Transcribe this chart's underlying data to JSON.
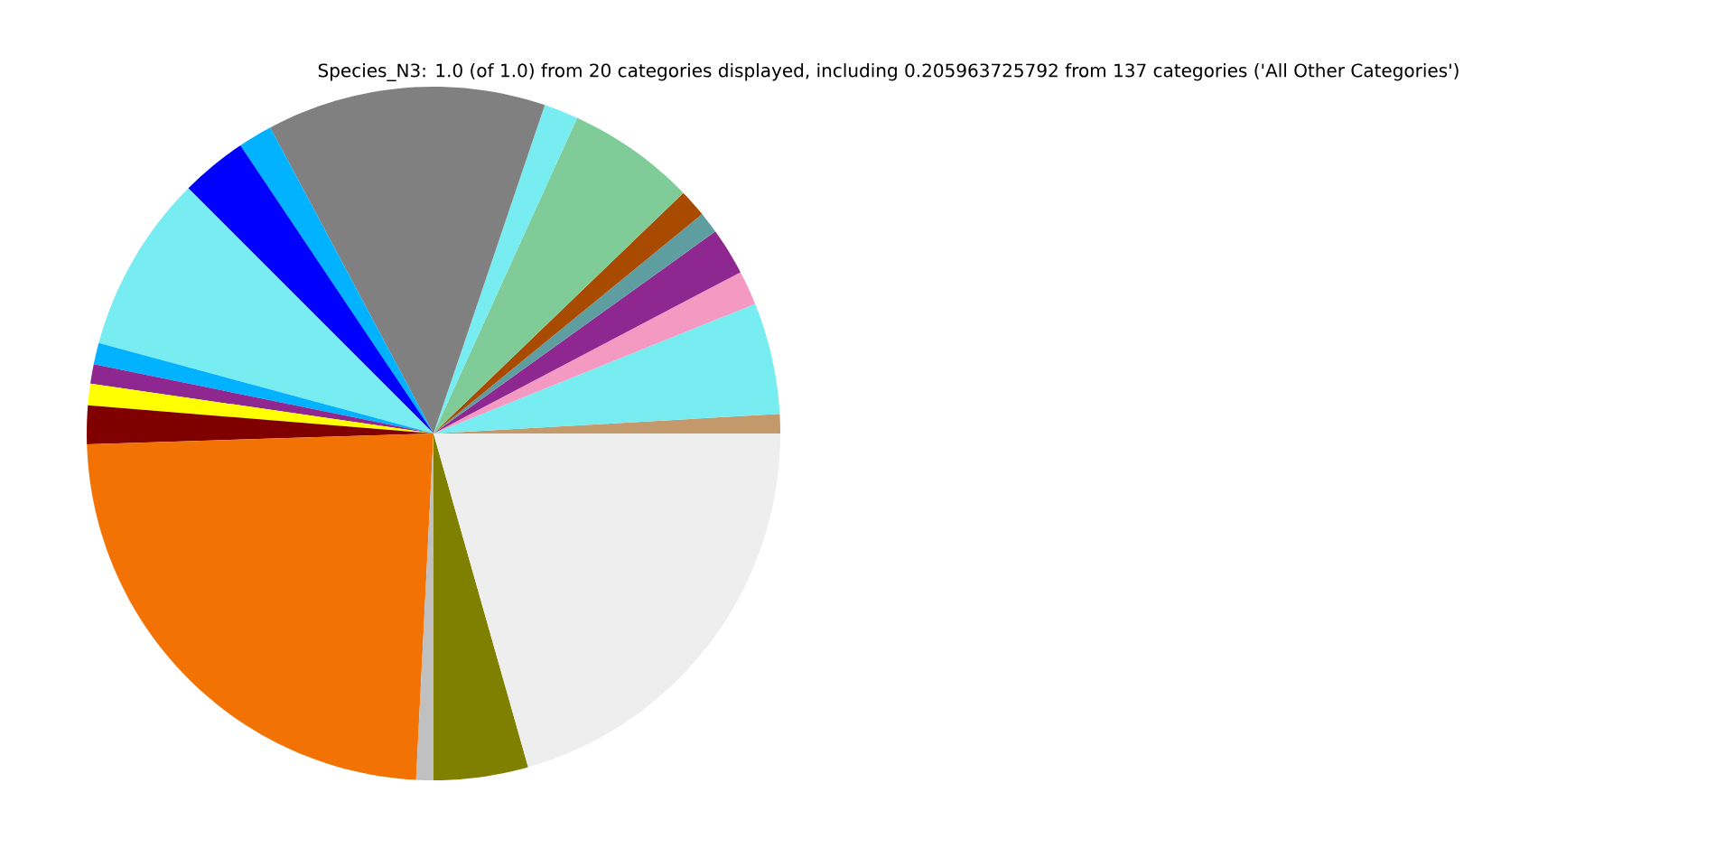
{
  "chart_data": {
    "type": "pie",
    "title": "Species_N3: 1.0 (of 1.0) from 20 categories displayed, including 0.205963725792 from 137 categories ('All Other Categories')",
    "categories": [
      null,
      null,
      null,
      null,
      null,
      null,
      null,
      null,
      null,
      null,
      null,
      null,
      null,
      null,
      null,
      null,
      null,
      null,
      null,
      null
    ],
    "values": [
      0.9,
      5.2,
      1.6,
      2.2,
      1.0,
      1.3,
      6.0,
      1.6,
      13.0,
      1.6,
      3.1,
      8.3,
      1.0,
      0.9,
      1.0,
      1.8,
      23.7,
      0.8,
      4.4,
      20.6
    ],
    "colors": [
      "#c49a6c",
      "#77ecf1",
      "#f49ac2",
      "#8e278f",
      "#5f9ea0",
      "#a84a00",
      "#80cc99",
      "#77ecf1",
      "#808080",
      "#00b2ff",
      "#0000ff",
      "#77ecf1",
      "#00b2ff",
      "#8e278f",
      "#ffff00",
      "#800000",
      "#f27304",
      "#c0c0c0",
      "#808000",
      "#eeeeee"
    ]
  }
}
